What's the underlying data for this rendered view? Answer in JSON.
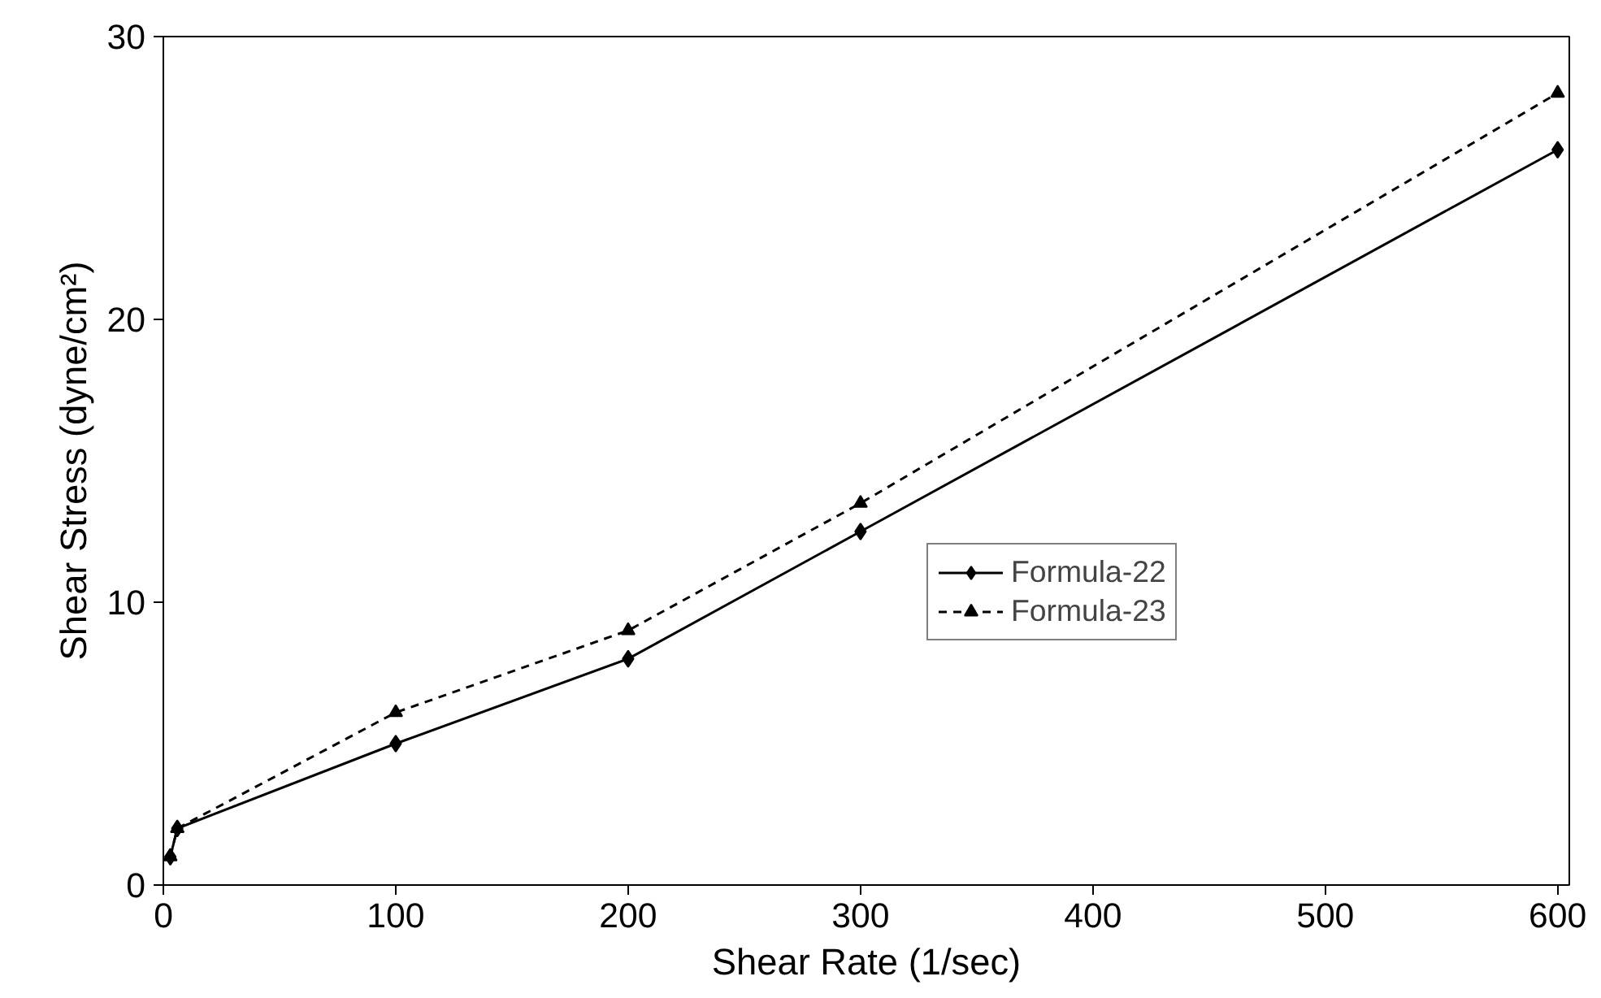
{
  "chart_data": {
    "type": "line",
    "xlabel": "Shear Rate (1/sec)",
    "ylabel": "Shear Stress (dyne/cm²)",
    "x": [
      3,
      6,
      100,
      200,
      300,
      600
    ],
    "series": [
      {
        "name": "Formula-22",
        "color": "#000000",
        "values": [
          1,
          2,
          5,
          8,
          12.5,
          26
        ],
        "marker": "diamond",
        "line_style": "solid"
      },
      {
        "name": "Formula-23",
        "color": "#000000",
        "values": [
          1,
          2,
          6.1,
          9,
          13.5,
          28
        ],
        "marker": "triangle",
        "line_style": "dashed"
      }
    ],
    "xlim": [
      0,
      605
    ],
    "ylim": [
      0,
      30
    ],
    "xticks": [
      0,
      100,
      200,
      300,
      400,
      500,
      600
    ],
    "yticks": [
      0,
      10,
      20,
      30
    ],
    "grid": false,
    "legend": "right"
  }
}
